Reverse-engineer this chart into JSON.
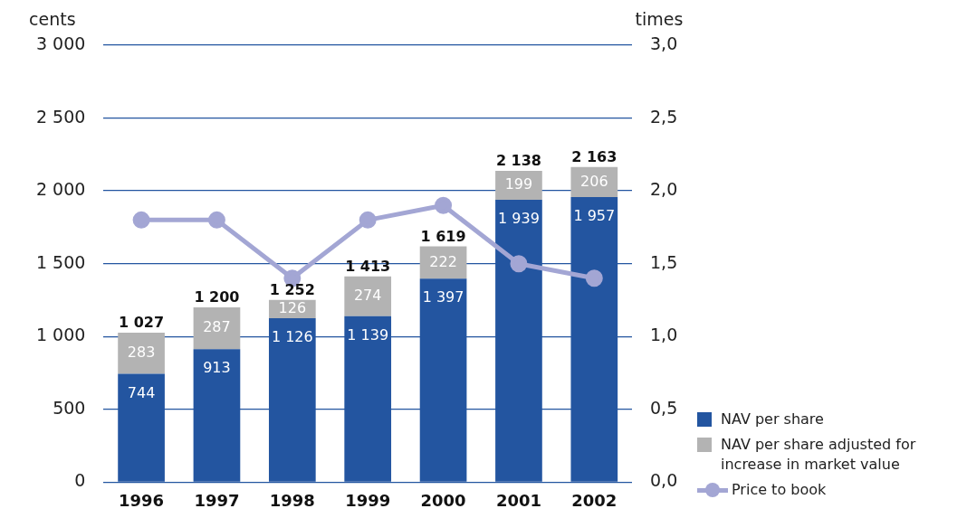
{
  "chart_data": {
    "type": "bar",
    "stacked": true,
    "categories": [
      "1996",
      "1997",
      "1998",
      "1999",
      "2000",
      "2001",
      "2002"
    ],
    "series": [
      {
        "name": "NAV per share",
        "color": "#2355a0",
        "values": [
          744,
          913,
          1126,
          1139,
          1397,
          1939,
          1957
        ],
        "value_labels": [
          "744",
          "913",
          "1 126",
          "1 139",
          "1 397",
          "1 939",
          "1 957"
        ]
      },
      {
        "name": "NAV per share adjusted for increase in market value",
        "color": "#b3b3b3",
        "values": [
          283,
          287,
          126,
          274,
          222,
          199,
          206
        ],
        "value_labels": [
          "283",
          "287",
          "126",
          "274",
          "222",
          "199",
          "206"
        ]
      },
      {
        "name": "Price to book",
        "type": "line",
        "axis": "y2",
        "color": "#a3a6d4",
        "values": [
          1.8,
          1.8,
          1.4,
          1.8,
          1.9,
          1.5,
          1.4
        ]
      }
    ],
    "totals": [
      "1 027",
      "1 200",
      "1 252",
      "1 413",
      "1 619",
      "2 138",
      "2 163"
    ],
    "ylabel": "cents",
    "y2label": "times",
    "ylim": [
      0,
      3000
    ],
    "yticks": [
      {
        "value": 0,
        "label": "0"
      },
      {
        "value": 500,
        "label": "500"
      },
      {
        "value": 1000,
        "label": "1 000"
      },
      {
        "value": 1500,
        "label": "1 500"
      },
      {
        "value": 2000,
        "label": "2 000"
      },
      {
        "value": 2500,
        "label": "2 500"
      },
      {
        "value": 3000,
        "label": "3 000"
      }
    ],
    "y2lim": [
      0,
      3
    ],
    "y2ticks": [
      {
        "value": 0,
        "label": "0,0"
      },
      {
        "value": 0.5,
        "label": "0,5"
      },
      {
        "value": 1,
        "label": "1,0"
      },
      {
        "value": 1.5,
        "label": "1,5"
      },
      {
        "value": 2,
        "label": "2,0"
      },
      {
        "value": 2.5,
        "label": "2,5"
      },
      {
        "value": 3,
        "label": "3,0"
      }
    ],
    "grid": "y",
    "marker": "circle",
    "legend": "bottom right"
  }
}
